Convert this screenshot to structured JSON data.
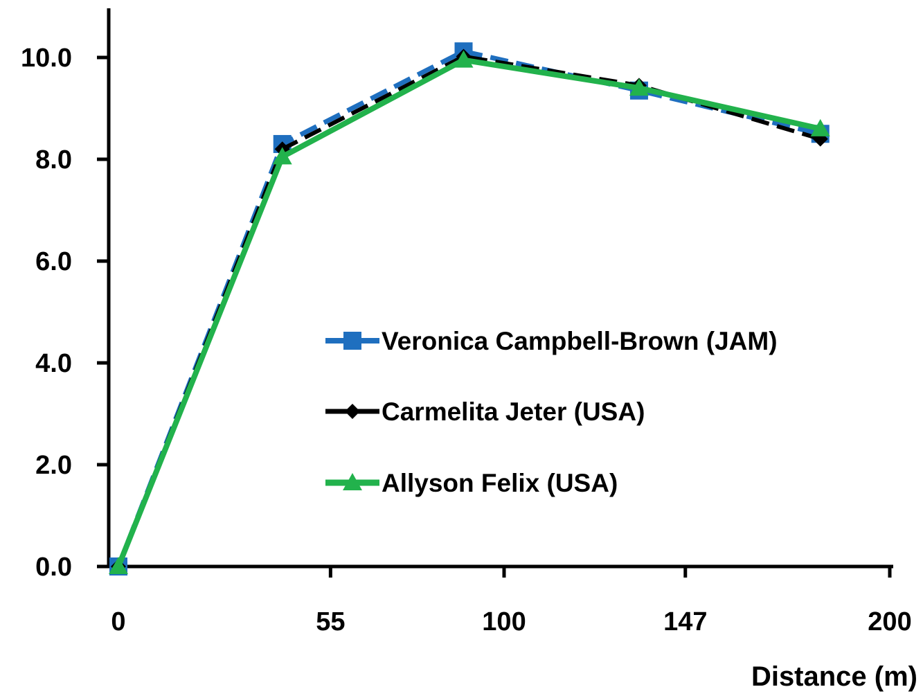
{
  "chart_data": {
    "type": "line",
    "title": "",
    "xlabel": "Distance (m)",
    "ylabel": "",
    "x_ticks": [
      "0",
      "55",
      "100",
      "147",
      "200"
    ],
    "y_ticks": [
      "0.0",
      "2.0",
      "4.0",
      "6.0",
      "8.0",
      "10.0"
    ],
    "x_tick_values": [
      0,
      55,
      100,
      147,
      200
    ],
    "y_tick_values": [
      0,
      2,
      4,
      6,
      8,
      10
    ],
    "ylim": [
      0,
      10.8
    ],
    "grid": false,
    "legend_position": "center-right",
    "series": [
      {
        "name": "Veronica Campbell-Brown (JAM)",
        "color": "#1f6fbf",
        "line_style": "dashed",
        "marker": "square",
        "x": [
          0,
          42.5,
          89.5,
          135,
          182
        ],
        "y": [
          0.0,
          8.3,
          10.12,
          9.35,
          8.5
        ]
      },
      {
        "name": "Carmelita Jeter (USA)",
        "color": "#000000",
        "line_style": "dashed",
        "marker": "diamond",
        "x": [
          0,
          42.5,
          89.5,
          135,
          182
        ],
        "y": [
          0.0,
          8.2,
          10.02,
          9.45,
          8.4
        ]
      },
      {
        "name": "Allyson Felix (USA)",
        "color": "#22b24c",
        "line_style": "solid",
        "marker": "triangle",
        "x": [
          0,
          42.5,
          89.5,
          135,
          182
        ],
        "y": [
          0.0,
          8.05,
          9.95,
          9.4,
          8.6
        ]
      }
    ]
  }
}
